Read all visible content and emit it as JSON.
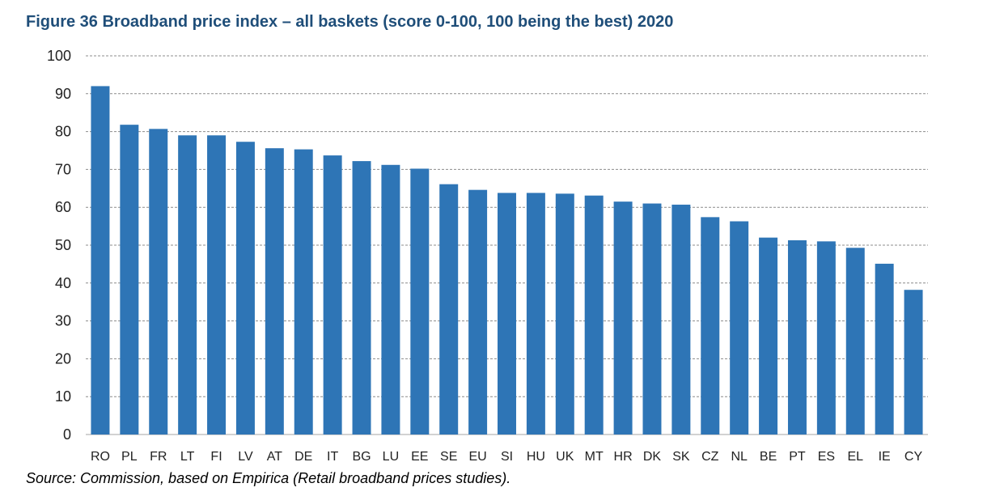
{
  "title": "Figure 36 Broadband price index – all baskets (score 0-100, 100 being the best) 2020",
  "source": "Source: Commission, based on Empirica (Retail broadband prices studies).",
  "colors": {
    "bar": "#2e75b6",
    "grid": "#8c8c8c",
    "axis": "#a6a6a6"
  },
  "chart_data": {
    "type": "bar",
    "title": "Figure 36 Broadband price index – all baskets (score 0-100, 100 being the best) 2020",
    "categories": [
      "RO",
      "PL",
      "FR",
      "LT",
      "FI",
      "LV",
      "AT",
      "DE",
      "IT",
      "BG",
      "LU",
      "EE",
      "SE",
      "EU",
      "SI",
      "HU",
      "UK",
      "MT",
      "HR",
      "DK",
      "SK",
      "CZ",
      "NL",
      "BE",
      "PT",
      "ES",
      "EL",
      "IE",
      "CY"
    ],
    "values": [
      92,
      81.8,
      80.7,
      79,
      79,
      77.3,
      75.6,
      75.3,
      73.7,
      72.2,
      71.2,
      70.2,
      66.1,
      64.6,
      63.8,
      63.8,
      63.6,
      63.1,
      61.5,
      61,
      60.7,
      57.4,
      56.3,
      52,
      51.3,
      51,
      49.3,
      45.1,
      38.2
    ],
    "ylim": [
      0,
      100
    ],
    "yticks": [
      0,
      10,
      20,
      30,
      40,
      50,
      60,
      70,
      80,
      90,
      100
    ],
    "xlabel": "",
    "ylabel": "",
    "grid": true,
    "legend": "none"
  }
}
